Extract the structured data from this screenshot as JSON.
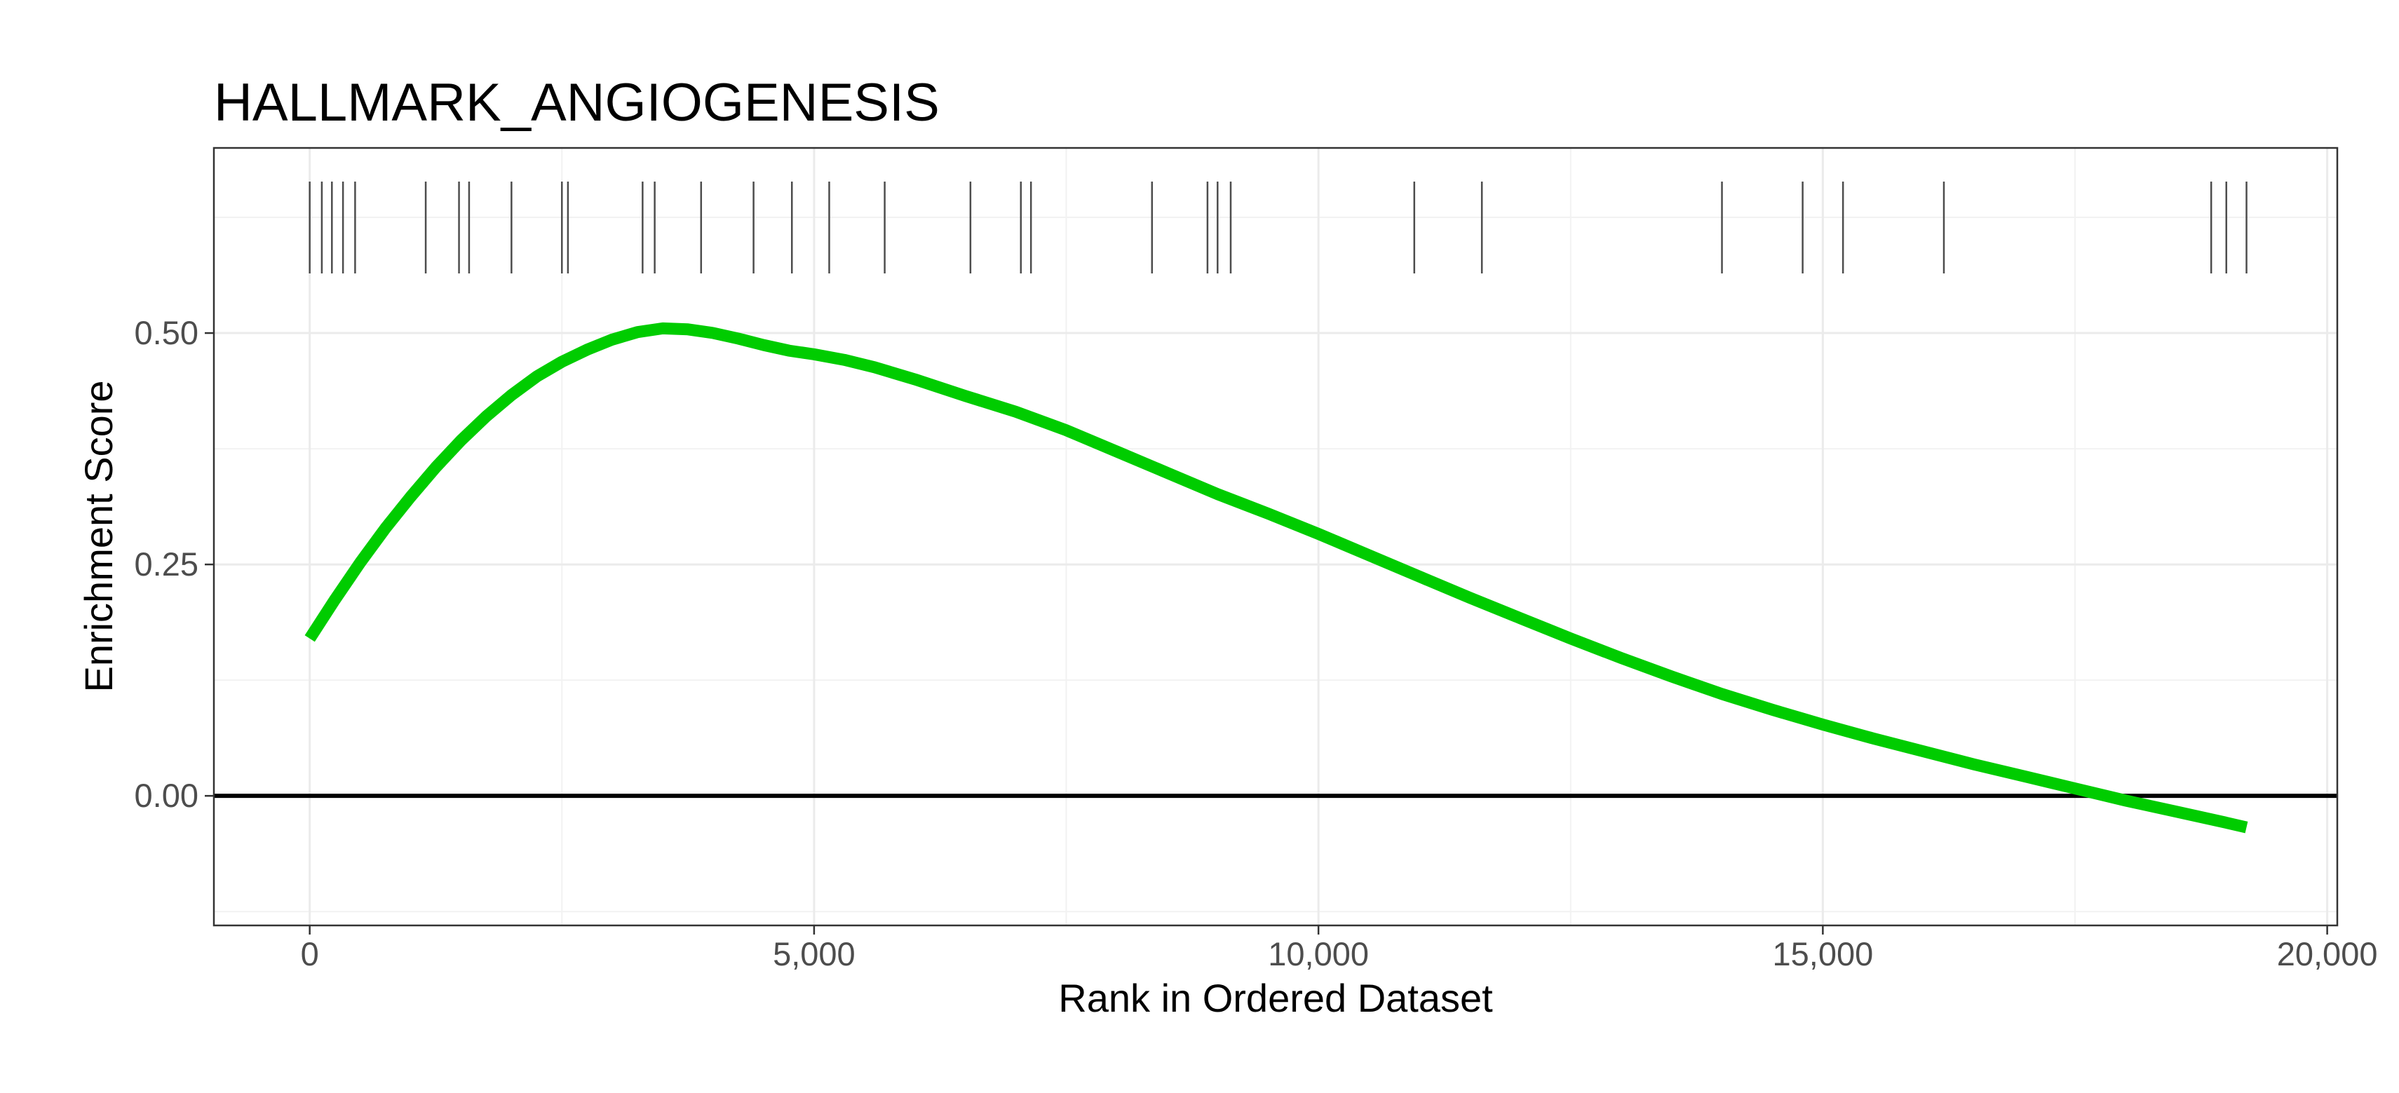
{
  "chart_data": {
    "type": "line",
    "title": "HALLMARK_ANGIOGENESIS",
    "xlabel": "Rank in Ordered Dataset",
    "ylabel": "Enrichment Score",
    "xlim": [
      -950,
      20100
    ],
    "ylim": [
      -0.14,
      0.7
    ],
    "x_ticks": [
      0,
      5000,
      10000,
      15000,
      20000
    ],
    "x_tick_labels": [
      "0",
      "5,000",
      "10,000",
      "15,000",
      "20,000"
    ],
    "y_ticks": [
      0.0,
      0.25,
      0.5
    ],
    "y_tick_labels": [
      "0.00",
      "0.25",
      "0.50"
    ],
    "grid": true,
    "zero_line": 0,
    "series": [
      {
        "color": "#00cc00",
        "x": [
          0,
          250,
          500,
          750,
          1000,
          1250,
          1500,
          1750,
          2000,
          2250,
          2500,
          2750,
          3000,
          3250,
          3500,
          3750,
          4000,
          4250,
          4500,
          4750,
          5000,
          5300,
          5600,
          6000,
          6500,
          7000,
          7500,
          8000,
          8500,
          9000,
          9500,
          10000,
          10500,
          11000,
          11500,
          12000,
          12500,
          13000,
          13500,
          14000,
          14500,
          15000,
          15500,
          16000,
          16500,
          17000,
          17500,
          18000,
          18500,
          19000,
          19200
        ],
        "y": [
          0.17,
          0.212,
          0.252,
          0.289,
          0.323,
          0.355,
          0.384,
          0.41,
          0.433,
          0.453,
          0.469,
          0.482,
          0.493,
          0.501,
          0.505,
          0.504,
          0.5,
          0.494,
          0.487,
          0.481,
          0.477,
          0.471,
          0.463,
          0.45,
          0.432,
          0.415,
          0.395,
          0.372,
          0.349,
          0.326,
          0.305,
          0.283,
          0.26,
          0.237,
          0.214,
          0.192,
          0.17,
          0.149,
          0.129,
          0.11,
          0.093,
          0.077,
          0.062,
          0.048,
          0.034,
          0.021,
          0.008,
          -0.005,
          -0.017,
          -0.029,
          -0.034
        ]
      }
    ],
    "rug_positions": [
      0,
      120,
      220,
      330,
      450,
      1150,
      1480,
      1580,
      2000,
      2500,
      2560,
      3300,
      3420,
      3880,
      4400,
      4780,
      5150,
      5700,
      6550,
      7050,
      7150,
      8350,
      8900,
      9000,
      9130,
      10950,
      11620,
      14000,
      14800,
      15200,
      16200,
      18850,
      19000,
      19200
    ]
  }
}
